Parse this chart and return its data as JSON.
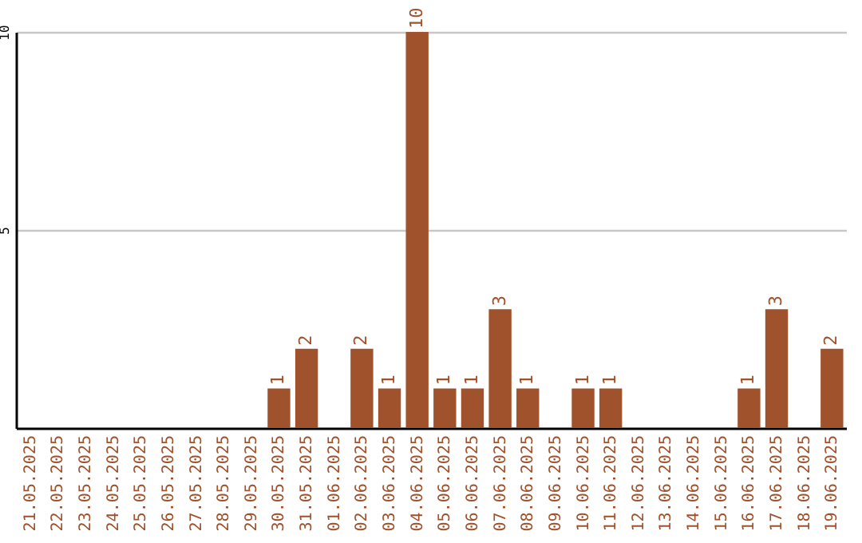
{
  "chart_data": {
    "type": "bar",
    "categories": [
      "21.05.2025",
      "22.05.2025",
      "23.05.2025",
      "24.05.2025",
      "25.05.2025",
      "26.05.2025",
      "27.05.2025",
      "28.05.2025",
      "29.05.2025",
      "30.05.2025",
      "31.05.2025",
      "01.06.2025",
      "02.06.2025",
      "03.06.2025",
      "04.06.2025",
      "05.06.2025",
      "06.06.2025",
      "07.06.2025",
      "08.06.2025",
      "09.06.2025",
      "10.06.2025",
      "11.06.2025",
      "12.06.2025",
      "13.06.2025",
      "14.06.2025",
      "15.06.2025",
      "16.06.2025",
      "17.06.2025",
      "18.06.2025",
      "19.06.2025"
    ],
    "values": [
      0,
      0,
      0,
      0,
      0,
      0,
      0,
      0,
      0,
      1,
      2,
      0,
      2,
      1,
      10,
      1,
      1,
      3,
      1,
      0,
      1,
      1,
      0,
      0,
      0,
      0,
      1,
      3,
      0,
      2
    ],
    "value_labels": [
      null,
      null,
      null,
      null,
      null,
      null,
      null,
      null,
      null,
      "1",
      "2",
      null,
      "2",
      "1",
      "10",
      "1",
      "1",
      "3",
      "1",
      null,
      "1",
      "1",
      null,
      null,
      null,
      null,
      "1",
      "3",
      null,
      "2"
    ],
    "color": "#a0522d",
    "ylim": [
      0,
      10
    ],
    "yticks": [
      5,
      10
    ],
    "grid": "y"
  }
}
